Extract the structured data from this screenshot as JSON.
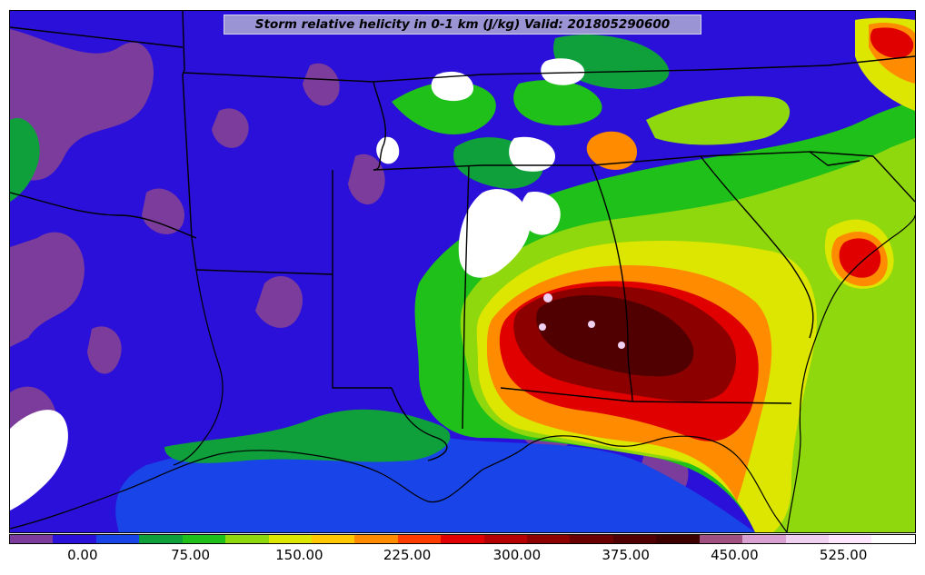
{
  "title": "Storm relative helicity in 0-1 km (J/kg) Valid: 201805290600",
  "colorbar": {
    "colors": [
      "#7b3c9c",
      "#2a10d8",
      "#1944e8",
      "#0fa03c",
      "#1fc01a",
      "#8fd80e",
      "#dce600",
      "#ffc800",
      "#ff8c00",
      "#ff3c00",
      "#e00000",
      "#b40000",
      "#8c0000",
      "#6a0000",
      "#500000",
      "#3c0000",
      "#a05080",
      "#d8a0d0",
      "#f0d0f0",
      "#ffe6ff",
      "#ffffff"
    ],
    "labels": [
      {
        "value": "0.00",
        "frac": 0.081
      },
      {
        "value": "75.00",
        "frac": 0.2
      },
      {
        "value": "150.00",
        "frac": 0.32
      },
      {
        "value": "225.00",
        "frac": 0.439
      },
      {
        "value": "300.00",
        "frac": 0.56
      },
      {
        "value": "375.00",
        "frac": 0.68
      },
      {
        "value": "450.00",
        "frac": 0.8
      },
      {
        "value": "525.00",
        "frac": 0.92
      }
    ]
  },
  "field_colors": {
    "background": "#2a10d8",
    "purple": "#7b3c9c",
    "blue": "#1944e8",
    "darkgreen": "#0fa03c",
    "green": "#1fc01a",
    "lime": "#8fd80e",
    "yellow": "#dce600",
    "orange": "#ff8c00",
    "red": "#e00000",
    "darkred": "#8c0000",
    "maroon": "#500000",
    "pink": "#f0d0f0",
    "white": "#ffffff"
  }
}
